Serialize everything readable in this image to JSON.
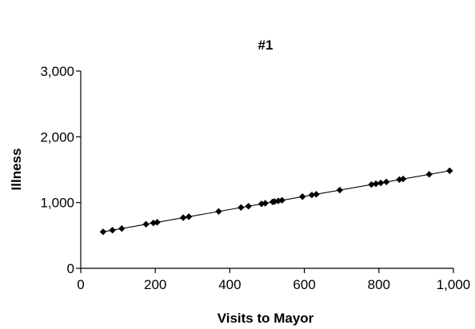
{
  "chart_data": {
    "type": "scatter",
    "title": "#1",
    "xlabel": "Visits to Mayor",
    "ylabel": "Illness",
    "xlim": [
      0,
      1000
    ],
    "ylim": [
      0,
      3000
    ],
    "x_ticks": [
      "0",
      "200",
      "400",
      "600",
      "800",
      "1,000"
    ],
    "y_ticks": [
      "0",
      "1,000",
      "2,000",
      "3,000"
    ],
    "x_tick_values": [
      0,
      200,
      400,
      600,
      800,
      1000
    ],
    "y_tick_values": [
      0,
      1000,
      2000,
      3000
    ],
    "grid": false,
    "trendline": {
      "slope": 0.9985,
      "intercept": 495
    },
    "x": [
      60,
      85,
      110,
      175,
      195,
      205,
      275,
      290,
      370,
      430,
      450,
      485,
      495,
      515,
      520,
      530,
      540,
      595,
      620,
      632,
      695,
      780,
      792,
      805,
      820,
      855,
      865,
      935,
      990
    ],
    "y": [
      555,
      580,
      605,
      670,
      690,
      700,
      770,
      785,
      865,
      925,
      945,
      980,
      990,
      1010,
      1015,
      1025,
      1035,
      1090,
      1115,
      1126,
      1190,
      1274,
      1286,
      1299,
      1314,
      1349,
      1359,
      1429,
      1484
    ]
  }
}
